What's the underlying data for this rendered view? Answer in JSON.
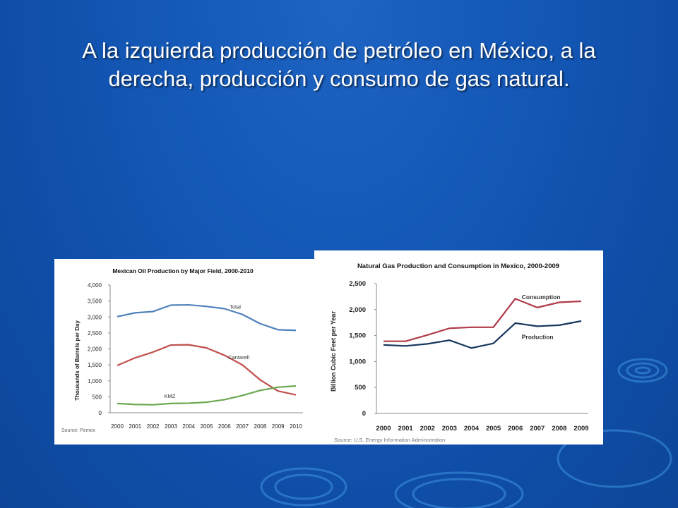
{
  "slide": {
    "title_line1": "A la izquierda producción de petróleo en México, a la",
    "title_line2": "derecha, producción y consumo  de gas natural."
  },
  "colors": {
    "background": "#1559b8",
    "total": "#4f81bd",
    "cantarell": "#c0504d",
    "kmz": "#6aa84f",
    "consumption": "#b03a48",
    "production": "#17375e"
  },
  "chart_data": [
    {
      "type": "line",
      "title": "Mexican Oil Production by Major Field, 2000-2010",
      "xlabel": "",
      "ylabel": "Thousands of Barrels per Day",
      "categories": [
        "2000",
        "2001",
        "2002",
        "2003",
        "2004",
        "2005",
        "2006",
        "2007",
        "2008",
        "2009",
        "2010"
      ],
      "ylim": [
        0,
        4000
      ],
      "yticks": [
        "0",
        "500",
        "1,000",
        "1,500",
        "2,000",
        "2,500",
        "3,000",
        "3,500",
        "4,000"
      ],
      "grid": false,
      "series": [
        {
          "name": "Total",
          "color": "#4f81bd",
          "values": [
            3010,
            3130,
            3170,
            3370,
            3380,
            3330,
            3260,
            3080,
            2790,
            2600,
            2580
          ]
        },
        {
          "name": "Cantarell",
          "color": "#c0504d",
          "values": [
            1480,
            1720,
            1900,
            2120,
            2130,
            2030,
            1800,
            1500,
            1030,
            680,
            560
          ]
        },
        {
          "name": "KMZ",
          "color": "#6aa84f",
          "values": [
            290,
            260,
            250,
            290,
            300,
            330,
            410,
            540,
            700,
            800,
            840
          ]
        }
      ],
      "source": "Source: Pemex"
    },
    {
      "type": "line",
      "title": "Natural Gas Production and Consumption in Mexico, 2000-2009",
      "xlabel": "",
      "ylabel": "Billion Cubic Feet per Year",
      "categories": [
        "2000",
        "2001",
        "2002",
        "2003",
        "2004",
        "2005",
        "2006",
        "2007",
        "2008",
        "2009"
      ],
      "ylim": [
        0,
        2500
      ],
      "yticks": [
        "0",
        "500",
        "1,000",
        "1,500",
        "2,000",
        "2,500"
      ],
      "grid": false,
      "series": [
        {
          "name": "Consumption",
          "color": "#b03a48",
          "values": [
            1390,
            1390,
            1510,
            1640,
            1660,
            1660,
            2210,
            2040,
            2140,
            2160
          ]
        },
        {
          "name": "Production",
          "color": "#17375e",
          "values": [
            1320,
            1300,
            1340,
            1410,
            1260,
            1350,
            1740,
            1680,
            1700,
            1780
          ]
        }
      ],
      "source": "Source: U.S. Energy Information Administration"
    }
  ]
}
